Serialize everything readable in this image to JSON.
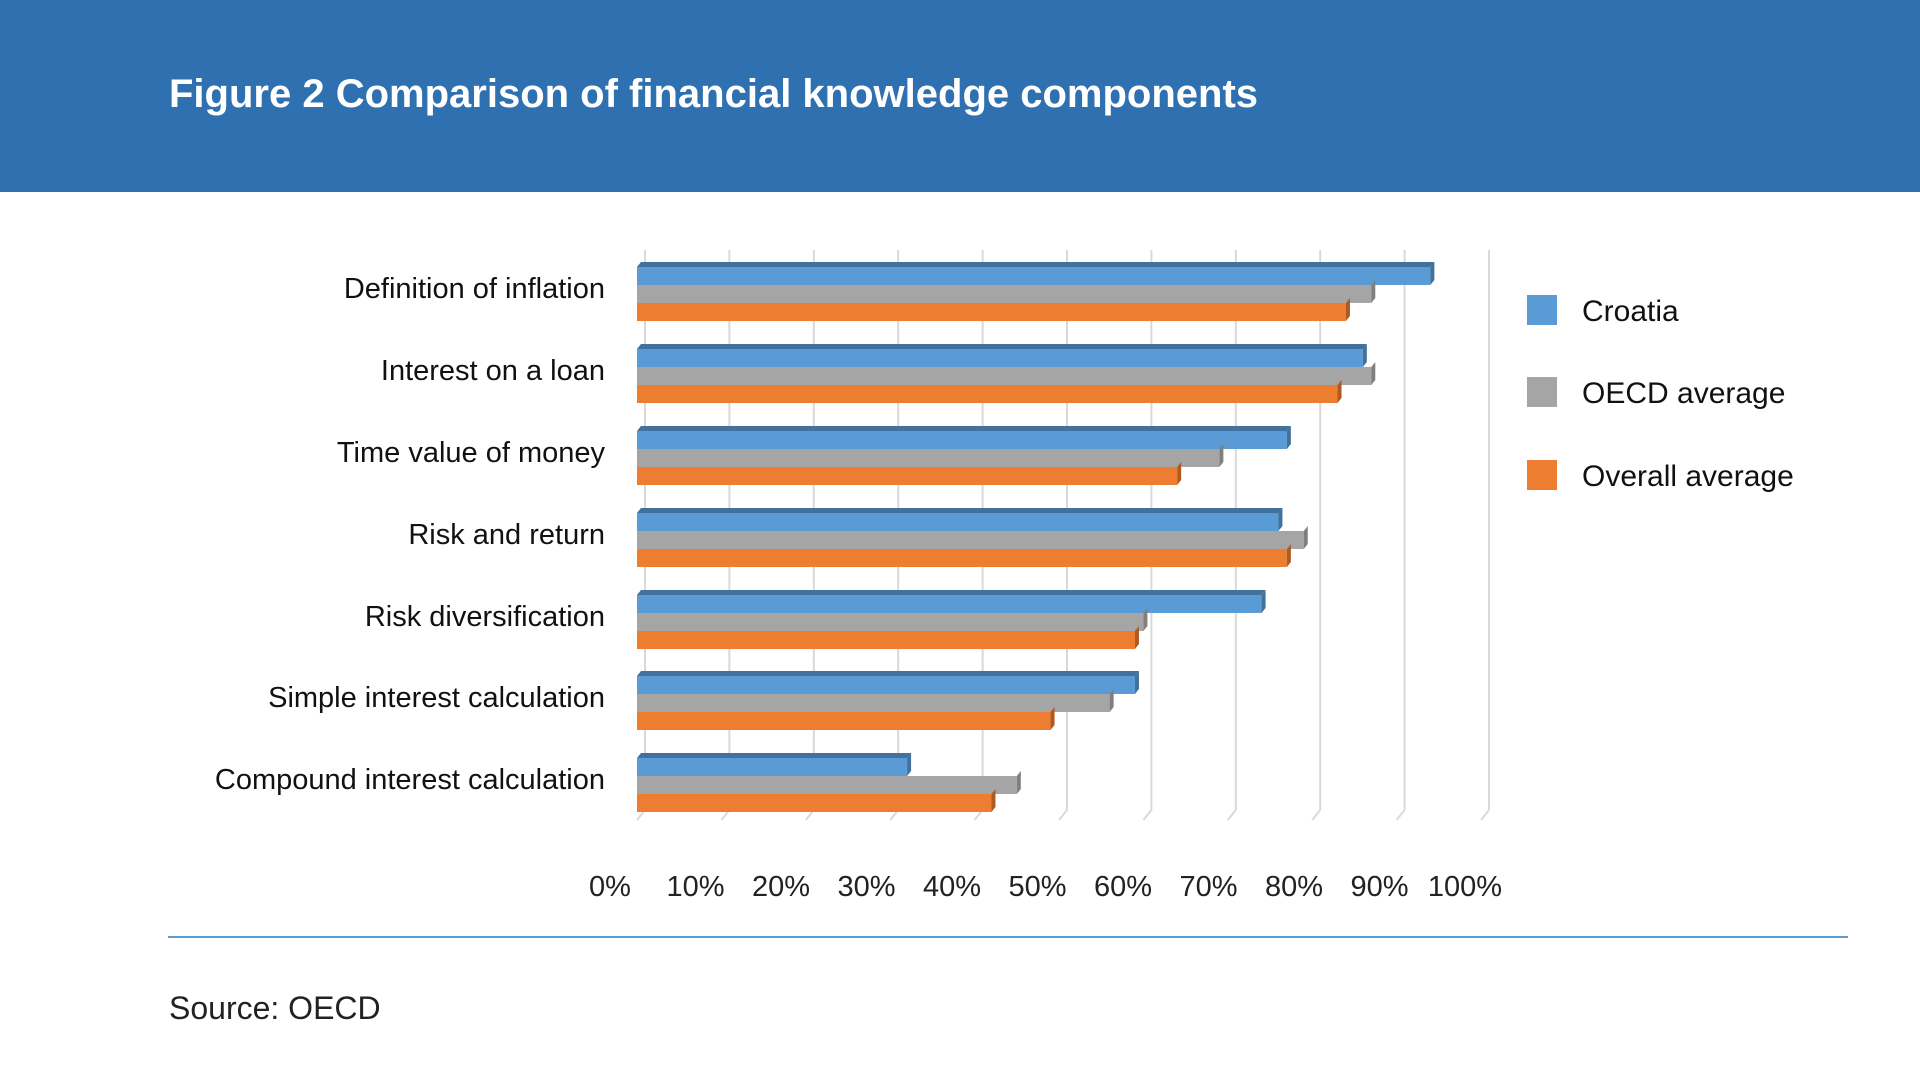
{
  "header": {
    "title": "Figure 2 Comparison of financial knowledge components"
  },
  "footer": {
    "source": "Source: OECD"
  },
  "chart_data": {
    "type": "bar",
    "orientation": "horizontal",
    "categories": [
      "Definition of inflation",
      "Interest on a loan",
      "Time value of money",
      "Risk and return",
      "Risk diversification",
      "Simple interest calculation",
      "Compound interest calculation"
    ],
    "series": [
      {
        "name": "Croatia",
        "color": "#5b9bd5",
        "values": [
          94,
          86,
          77,
          76,
          74,
          59,
          32
        ]
      },
      {
        "name": "OECD average",
        "color": "#a5a5a5",
        "values": [
          87,
          87,
          69,
          79,
          60,
          56,
          45
        ]
      },
      {
        "name": "Overall average",
        "color": "#ed7d31",
        "values": [
          84,
          83,
          64,
          77,
          59,
          49,
          42
        ]
      }
    ],
    "x_ticks": [
      "0%",
      "10%",
      "20%",
      "30%",
      "40%",
      "50%",
      "60%",
      "70%",
      "80%",
      "90%",
      "100%"
    ],
    "xlim": [
      0,
      100
    ],
    "grid": true,
    "legend_position": "right"
  }
}
